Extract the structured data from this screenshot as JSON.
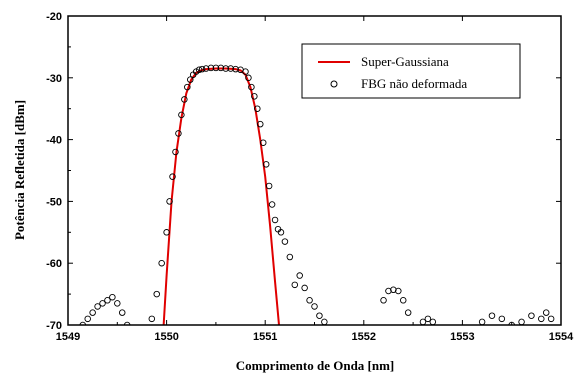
{
  "chart_data": {
    "type": "scatter",
    "title": "",
    "xlabel": "Comprimento de Onda [nm]",
    "ylabel": "Potência Refletida [dBm]",
    "xlim": [
      1549,
      1554
    ],
    "ylim": [
      -70,
      -20
    ],
    "xticks": [
      1549,
      1550,
      1551,
      1552,
      1553,
      1554
    ],
    "yticks": [
      -70,
      -60,
      -50,
      -40,
      -30,
      -20
    ],
    "legend_position": "top-right",
    "series": [
      {
        "name": "Super-Gaussiana",
        "kind": "line",
        "color": "#e00000",
        "x": [
          1549.97,
          1550.0,
          1550.05,
          1550.1,
          1550.15,
          1550.2,
          1550.25,
          1550.3,
          1550.35,
          1550.4,
          1550.5,
          1550.6,
          1550.7,
          1550.75,
          1550.8,
          1550.85,
          1550.9,
          1550.95,
          1551.0,
          1551.05,
          1551.1,
          1551.14
        ],
        "y": [
          -70,
          -62,
          -50,
          -42,
          -36.5,
          -32.5,
          -30.3,
          -29.2,
          -28.8,
          -28.6,
          -28.5,
          -28.5,
          -28.6,
          -28.8,
          -29.5,
          -31.5,
          -35,
          -40,
          -46,
          -54,
          -63,
          -70
        ]
      },
      {
        "name": "FBG não deformada",
        "kind": "scatter",
        "marker": "open-circle",
        "color": "#000000",
        "x": [
          1549.15,
          1549.2,
          1549.25,
          1549.3,
          1549.35,
          1549.4,
          1549.45,
          1549.5,
          1549.55,
          1549.6,
          1549.65,
          1549.7,
          1549.75,
          1549.85,
          1549.9,
          1549.95,
          1550.0,
          1550.03,
          1550.06,
          1550.09,
          1550.12,
          1550.15,
          1550.18,
          1550.21,
          1550.24,
          1550.27,
          1550.3,
          1550.33,
          1550.36,
          1550.4,
          1550.45,
          1550.5,
          1550.55,
          1550.6,
          1550.65,
          1550.7,
          1550.75,
          1550.8,
          1550.83,
          1550.86,
          1550.89,
          1550.92,
          1550.95,
          1550.98,
          1551.01,
          1551.04,
          1551.07,
          1551.1,
          1551.13,
          1551.16,
          1551.2,
          1551.25,
          1551.3,
          1551.35,
          1551.4,
          1551.45,
          1551.5,
          1551.55,
          1551.6,
          1551.7,
          1551.85,
          1552.0,
          1552.2,
          1552.25,
          1552.3,
          1552.35,
          1552.4,
          1552.45,
          1552.6,
          1552.65,
          1552.7,
          1553.2,
          1553.3,
          1553.4,
          1553.5,
          1553.6,
          1553.7,
          1553.8,
          1553.85,
          1553.9
        ],
        "y": [
          -70,
          -69,
          -68,
          -67,
          -66.5,
          -66,
          -65.5,
          -66.5,
          -68,
          -70,
          -71,
          -71,
          -70.5,
          -69,
          -65,
          -60,
          -55,
          -50,
          -46,
          -42,
          -39,
          -36,
          -33.5,
          -31.5,
          -30.3,
          -29.5,
          -29,
          -28.7,
          -28.6,
          -28.5,
          -28.4,
          -28.4,
          -28.4,
          -28.5,
          -28.5,
          -28.6,
          -28.7,
          -29,
          -30,
          -31.5,
          -33,
          -35,
          -37.5,
          -40.5,
          -44,
          -47.5,
          -50.5,
          -53,
          -54.5,
          -55,
          -56.5,
          -59,
          -63.5,
          -62,
          -64,
          -66,
          -67,
          -68.5,
          -69.5,
          -70.5,
          -71,
          -70.5,
          -66,
          -64.5,
          -64.3,
          -64.5,
          -66,
          -68,
          -69.5,
          -69,
          -69.5,
          -69.5,
          -68.5,
          -69,
          -70,
          -69.5,
          -68.5,
          -69,
          -68,
          -69
        ]
      }
    ]
  }
}
